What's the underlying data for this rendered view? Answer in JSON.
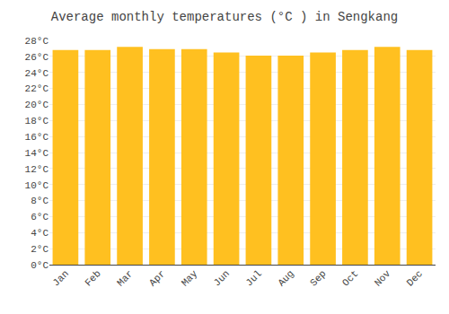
{
  "chart_data": {
    "type": "bar",
    "title": "Average monthly temperatures (°C ) in Sengkang",
    "categories": [
      "Jan",
      "Feb",
      "Mar",
      "Apr",
      "May",
      "Jun",
      "Jul",
      "Aug",
      "Sep",
      "Oct",
      "Nov",
      "Dec"
    ],
    "values": [
      26.8,
      26.8,
      27.2,
      26.9,
      26.9,
      26.5,
      26.1,
      26.1,
      26.5,
      26.8,
      27.2,
      26.8
    ],
    "color": "#FFC020",
    "ylim": [
      0,
      28
    ],
    "yticks": [
      {
        "value": 0,
        "label": "0°C"
      },
      {
        "value": 2,
        "label": "2°C"
      },
      {
        "value": 4,
        "label": "4°C"
      },
      {
        "value": 6,
        "label": "6°C"
      },
      {
        "value": 8,
        "label": "8°C"
      },
      {
        "value": 10,
        "label": "10°C"
      },
      {
        "value": 12,
        "label": "12°C"
      },
      {
        "value": 14,
        "label": "14°C"
      },
      {
        "value": 16,
        "label": "16°C"
      },
      {
        "value": 18,
        "label": "18°C"
      },
      {
        "value": 20,
        "label": "20°C"
      },
      {
        "value": 22,
        "label": "22°C"
      },
      {
        "value": 24,
        "label": "24°C"
      },
      {
        "value": 26,
        "label": "26°C"
      },
      {
        "value": 28,
        "label": "28°C"
      }
    ],
    "grid": true
  }
}
